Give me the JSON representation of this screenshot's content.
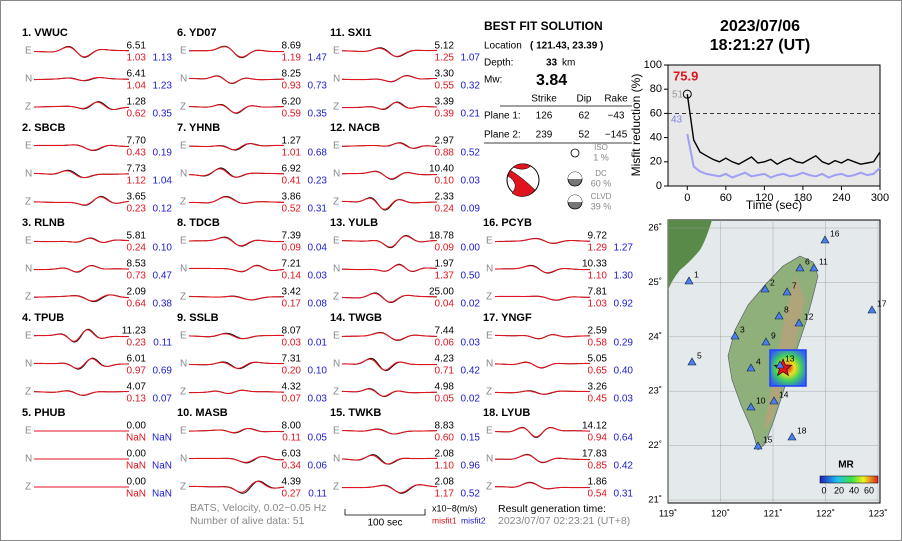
{
  "components": [
    "E",
    "N",
    "Z"
  ],
  "stations": [
    {
      "title": "1.  VWUC",
      "traces": [
        [
          "6.51",
          "1.03",
          "1.13"
        ],
        [
          "6.41",
          "1.04",
          "1.23"
        ],
        [
          "1.28",
          "0.62",
          "0.35"
        ]
      ]
    },
    {
      "title": "2.  SBCB",
      "traces": [
        [
          "7.70",
          "0.43",
          "0.19"
        ],
        [
          "7.73",
          "1.12",
          "1.04"
        ],
        [
          "3.65",
          "0.23",
          "0.12"
        ]
      ]
    },
    {
      "title": "3.  RLNB",
      "traces": [
        [
          "5.81",
          "0.24",
          "0.10"
        ],
        [
          "8.53",
          "0.73",
          "0.47"
        ],
        [
          "2.09",
          "0.64",
          "0.38"
        ]
      ]
    },
    {
      "title": "4.  TPUB",
      "traces": [
        [
          "11.23",
          "0.23",
          "0.11"
        ],
        [
          "6.01",
          "0.97",
          "0.69"
        ],
        [
          "4.07",
          "0.13",
          "0.07"
        ]
      ]
    },
    {
      "title": "5.  PHUB",
      "traces": [
        [
          "0.00",
          "NaN",
          "NaN"
        ],
        [
          "0.00",
          "NaN",
          "NaN"
        ],
        [
          "0.00",
          "NaN",
          "NaN"
        ]
      ]
    },
    {
      "title": "6.  YD07",
      "traces": [
        [
          "8.69",
          "1.19",
          "1.47"
        ],
        [
          "8.25",
          "0.93",
          "0.73"
        ],
        [
          "6.20",
          "0.59",
          "0.35"
        ]
      ]
    },
    {
      "title": "7.  YHNB",
      "traces": [
        [
          "1.27",
          "1.01",
          "0.68"
        ],
        [
          "6.92",
          "0.41",
          "0.23"
        ],
        [
          "3.86",
          "0.52",
          "0.31"
        ]
      ]
    },
    {
      "title": "8.  TDCB",
      "traces": [
        [
          "7.39",
          "0.09",
          "0.04"
        ],
        [
          "7.21",
          "0.14",
          "0.03"
        ],
        [
          "3.42",
          "0.17",
          "0.08"
        ]
      ]
    },
    {
      "title": "9.  SSLB",
      "traces": [
        [
          "8.07",
          "0.03",
          "0.01"
        ],
        [
          "7.31",
          "0.20",
          "0.10"
        ],
        [
          "4.32",
          "0.07",
          "0.03"
        ]
      ]
    },
    {
      "title": "10. MASB",
      "traces": [
        [
          "8.00",
          "0.11",
          "0.05"
        ],
        [
          "6.03",
          "0.34",
          "0.06"
        ],
        [
          "4.39",
          "0.27",
          "0.11"
        ]
      ]
    },
    {
      "title": "11. SXI1",
      "traces": [
        [
          "5.12",
          "1.25",
          "1.07"
        ],
        [
          "3.30",
          "0.55",
          "0.32"
        ],
        [
          "3.39",
          "0.39",
          "0.21"
        ]
      ]
    },
    {
      "title": "12. NACB",
      "traces": [
        [
          "2.97",
          "0.88",
          "0.52"
        ],
        [
          "10.40",
          "0.10",
          "0.03"
        ],
        [
          "2.33",
          "0.24",
          "0.09"
        ]
      ]
    },
    {
      "title": "13. YULB",
      "traces": [
        [
          "18.78",
          "0.09",
          "0.00"
        ],
        [
          "1.97",
          "1.37",
          "0.50"
        ],
        [
          "25.00",
          "0.04",
          "0.02"
        ]
      ]
    },
    {
      "title": "14. TWGB",
      "traces": [
        [
          "7.44",
          "0.06",
          "0.03"
        ],
        [
          "4.23",
          "0.71",
          "0.42"
        ],
        [
          "4.98",
          "0.05",
          "0.02"
        ]
      ]
    },
    {
      "title": "15. TWKB",
      "traces": [
        [
          "8.83",
          "0.60",
          "0.15"
        ],
        [
          "2.08",
          "1.10",
          "0.96"
        ],
        [
          "2.08",
          "1.17",
          "0.52"
        ]
      ]
    },
    {
      "title": "16. PCYB",
      "traces": [
        [
          "9.72",
          "1.29",
          "1.27"
        ],
        [
          "10.33",
          "1.10",
          "1.30"
        ],
        [
          "7.81",
          "1.03",
          "0.92"
        ]
      ]
    },
    {
      "title": "17. YNGF",
      "traces": [
        [
          "2.59",
          "0.58",
          "0.29"
        ],
        [
          "5.05",
          "0.65",
          "0.40"
        ],
        [
          "3.26",
          "0.45",
          "0.03"
        ]
      ]
    },
    {
      "title": "18. LYUB",
      "traces": [
        [
          "14.12",
          "0.94",
          "0.64"
        ],
        [
          "17.83",
          "0.85",
          "0.42"
        ],
        [
          "1.86",
          "0.54",
          "0.31"
        ]
      ]
    }
  ],
  "solution": {
    "title": "BEST FIT SOLUTION",
    "location_label": "Location",
    "location": "( 121.43,  23.39 )",
    "depth_label": "Depth:",
    "depth": "33",
    "depth_unit": "km",
    "mw_label": "Mw:",
    "mw": "3.84",
    "plane_headers": [
      "Strike",
      "Dip",
      "Rake"
    ],
    "planes": [
      {
        "label": "Plane 1:",
        "values": [
          "126",
          "62",
          "−43"
        ]
      },
      {
        "label": "Plane 2:",
        "values": [
          "239",
          "52",
          "−145"
        ]
      }
    ],
    "components": [
      {
        "label": "ISO",
        "value": "1 %"
      },
      {
        "label": "DC",
        "value": "60 %"
      },
      {
        "label": "CLVD",
        "value": "39 %"
      }
    ]
  },
  "event": {
    "date": "2023/07/06",
    "time": "18:21:27  (UT)"
  },
  "footer": {
    "filter": "BATS, Velocity, 0.02−0.05 Hz",
    "alive": "Number of alive data: 51",
    "scale": "100 sec",
    "unit": "x10−8(m/s)",
    "misfit1": "misfit1",
    "misfit2": "misfit2",
    "gen_label": "Result generation time:",
    "gen_time": "2023/07/07 02:23:21 (UT+8)"
  },
  "chart_data": {
    "type": "line",
    "ylabel": "Misfit reduction (%)",
    "xlabel": "Time (sec)",
    "x": [
      0,
      10,
      20,
      30,
      40,
      50,
      60,
      70,
      80,
      90,
      100,
      110,
      120,
      130,
      140,
      150,
      160,
      170,
      180,
      190,
      200,
      210,
      220,
      230,
      240,
      250,
      260,
      270,
      280,
      290,
      300
    ],
    "series": [
      {
        "color": "#000000",
        "values": [
          75.9,
          38,
          28,
          25,
          22,
          20,
          23,
          20,
          18,
          21,
          24,
          19,
          20,
          22,
          18,
          21,
          23,
          20,
          19,
          22,
          25,
          20,
          18,
          21,
          19,
          22,
          20,
          18,
          19,
          20,
          28
        ]
      },
      {
        "color": "#9f9ff5",
        "values": [
          43,
          16,
          12,
          10,
          9,
          8,
          10,
          7,
          9,
          11,
          8,
          9,
          10,
          7,
          9,
          10,
          8,
          9,
          11,
          9,
          8,
          10,
          7,
          9,
          10,
          8,
          9,
          11,
          9,
          10,
          15
        ]
      }
    ],
    "xlim": [
      -30,
      300
    ],
    "ylim": [
      0,
      100
    ],
    "xticks": [
      0,
      60,
      120,
      180,
      240,
      300
    ],
    "yticks": [
      0,
      20,
      40,
      60,
      80,
      100
    ],
    "reference_line": 60,
    "annotations": [
      "75.9",
      "51",
      "43"
    ]
  },
  "map": {
    "lon_labels": [
      "119˚",
      "120˚",
      "121˚",
      "122˚",
      "123˚"
    ],
    "lat_labels": [
      "26˚",
      "25˚",
      "24˚",
      "23˚",
      "22˚",
      "21˚"
    ],
    "stations": [
      "1",
      "2",
      "3",
      "4",
      "5",
      "6",
      "7",
      "8",
      "9",
      "10",
      "11",
      "12",
      "13",
      "14",
      "15",
      "16",
      "17",
      "18"
    ],
    "colorbar": {
      "title": "MR",
      "ticks": [
        "0",
        "20",
        "40",
        "60"
      ]
    }
  }
}
